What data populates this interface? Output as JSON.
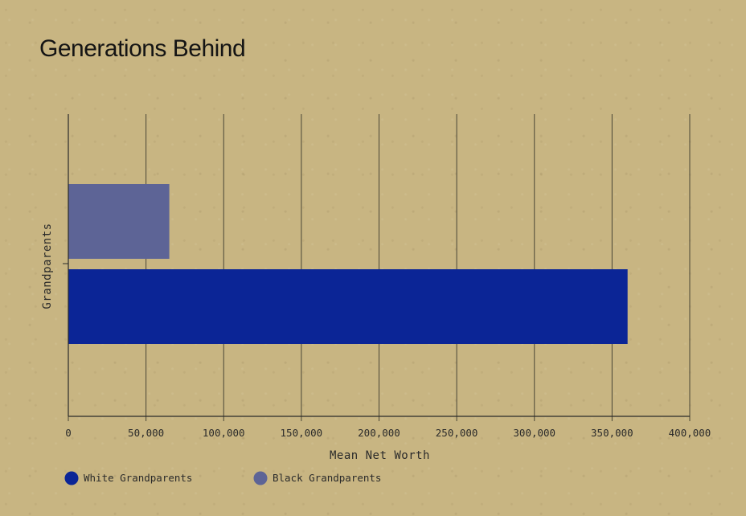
{
  "chart_data": {
    "type": "bar",
    "orientation": "horizontal",
    "title": "Generations Behind",
    "xlabel": "Mean Net Worth",
    "ylabel": "Grandparents",
    "xlim": [
      0,
      400000
    ],
    "xticks": [
      0,
      50000,
      100000,
      150000,
      200000,
      250000,
      300000,
      350000,
      400000
    ],
    "xtick_labels": [
      "0",
      "50,000",
      "100,000",
      "150,000",
      "200,000",
      "250,000",
      "300,000",
      "350,000",
      "400,000"
    ],
    "grid": "vertical",
    "legend_position": "bottom-left",
    "series": [
      {
        "name": "White Grandparents",
        "values": [
          360000
        ],
        "color": "#0b2596"
      },
      {
        "name": "Black Grandparents",
        "values": [
          65000
        ],
        "color": "#5d6496"
      }
    ]
  },
  "colors": {
    "background": "#c8b582",
    "grid": "#4a4636",
    "white_grandparents": "#0b2596",
    "black_grandparents": "#5d6496"
  }
}
